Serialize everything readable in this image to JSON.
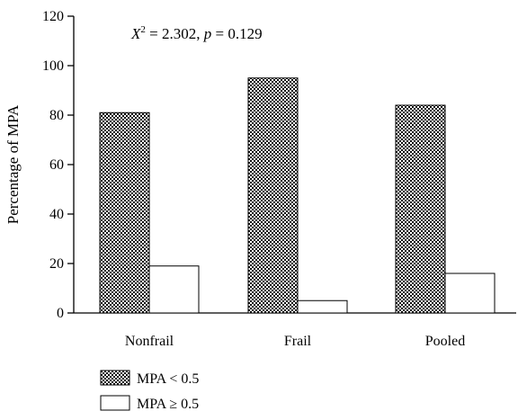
{
  "chart_data": {
    "type": "bar",
    "categories": [
      "Nonfrail",
      "Frail",
      "Pooled"
    ],
    "series": [
      {
        "name": "MPA < 0.5",
        "values": [
          81,
          95,
          84
        ],
        "fill": "checkered"
      },
      {
        "name": "MPA ≥ 0.5",
        "values": [
          19,
          5,
          16
        ],
        "fill": "white"
      }
    ],
    "ylabel": "Percentage of MPA",
    "xlabel": "",
    "title": "",
    "ylim": [
      0,
      120
    ],
    "yticks": [
      0,
      20,
      40,
      60,
      80,
      100,
      120
    ],
    "annotation": {
      "var": "X",
      "sup": "2",
      "stat_text": " = 2.302, ",
      "p_var": "p",
      "p_text": " = 0.129"
    },
    "legend_position": "bottom-left",
    "grid": false
  }
}
